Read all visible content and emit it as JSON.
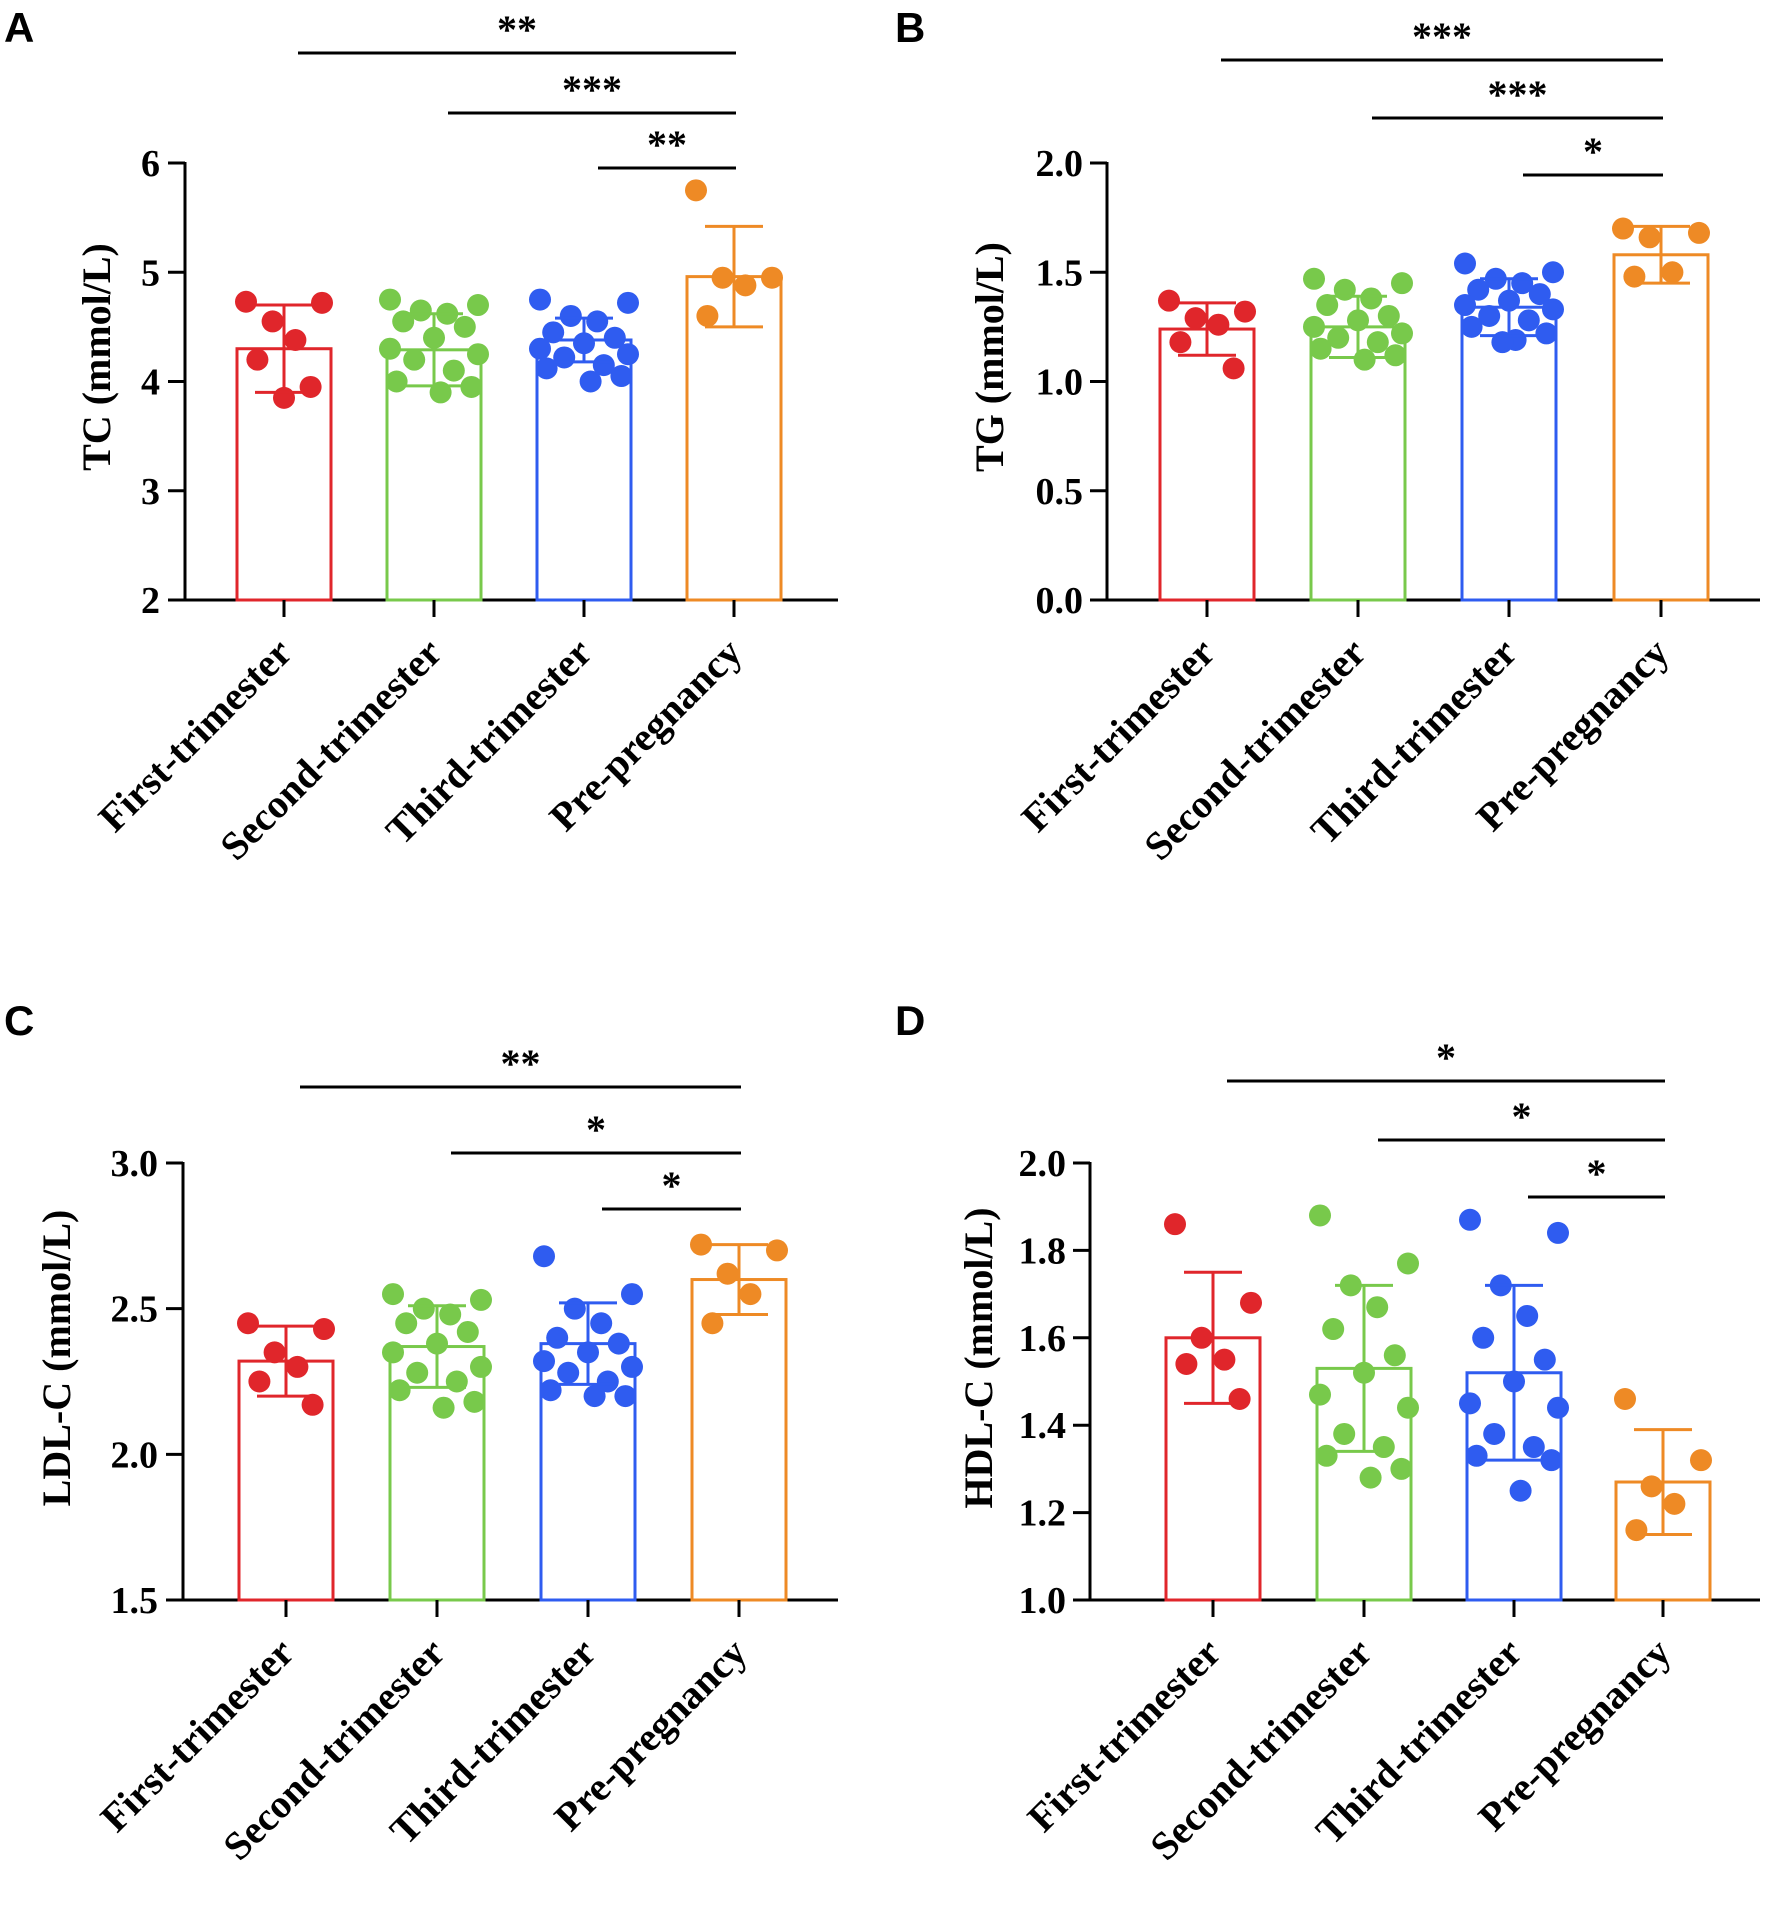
{
  "colors": {
    "First-trimester": "#E0262B",
    "Second-trimester": "#78C94B",
    "Third-trimester": "#2F5CF0",
    "Pre-pregnancy": "#EE8A25"
  },
  "chart_data": [
    {
      "panel": "A",
      "type": "bar",
      "categories": [
        "First-trimester",
        "Second-trimester",
        "Third-trimester",
        "Pre-pregnancy"
      ],
      "ylabel": "TC (mmol/L)",
      "ylim": [
        2,
        6
      ],
      "yticks": [
        "2",
        "3",
        "4",
        "5",
        "6"
      ],
      "series": [
        {
          "mean": 4.3,
          "sd": 0.4,
          "points": [
            4.73,
            4.72,
            4.55,
            4.38,
            4.2,
            3.95,
            3.85
          ]
        },
        {
          "mean": 4.29,
          "sd": 0.33,
          "points": [
            4.75,
            4.7,
            4.65,
            4.62,
            4.55,
            4.5,
            4.4,
            4.3,
            4.25,
            4.2,
            4.1,
            4.0,
            3.95,
            3.9
          ]
        },
        {
          "mean": 4.38,
          "sd": 0.2,
          "points": [
            4.75,
            4.72,
            4.6,
            4.55,
            4.45,
            4.4,
            4.35,
            4.3,
            4.25,
            4.22,
            4.15,
            4.12,
            4.05,
            4.0
          ]
        },
        {
          "mean": 4.96,
          "sd": 0.46,
          "points": [
            5.75,
            4.95,
            4.95,
            4.88,
            4.6
          ]
        }
      ],
      "significance": [
        {
          "from": 1,
          "to": 4,
          "label": "**"
        },
        {
          "from": 2,
          "to": 4,
          "label": "***"
        },
        {
          "from": 3,
          "to": 4,
          "label": "**"
        }
      ]
    },
    {
      "panel": "B",
      "type": "bar",
      "categories": [
        "First-trimester",
        "Second-trimester",
        "Third-trimester",
        "Pre-pregnancy"
      ],
      "ylabel": "TG (mmol/L)",
      "ylim": [
        0,
        2
      ],
      "yticks": [
        "0.0",
        "0.5",
        "1.0",
        "1.5",
        "2.0"
      ],
      "series": [
        {
          "mean": 1.24,
          "sd": 0.12,
          "points": [
            1.37,
            1.32,
            1.29,
            1.26,
            1.18,
            1.06
          ]
        },
        {
          "mean": 1.25,
          "sd": 0.14,
          "points": [
            1.47,
            1.45,
            1.42,
            1.38,
            1.35,
            1.3,
            1.28,
            1.25,
            1.22,
            1.2,
            1.18,
            1.15,
            1.12,
            1.1
          ]
        },
        {
          "mean": 1.34,
          "sd": 0.13,
          "points": [
            1.54,
            1.5,
            1.47,
            1.45,
            1.42,
            1.4,
            1.37,
            1.35,
            1.33,
            1.3,
            1.28,
            1.25,
            1.22,
            1.19,
            1.18
          ]
        },
        {
          "mean": 1.58,
          "sd": 0.13,
          "points": [
            1.7,
            1.68,
            1.66,
            1.5,
            1.48
          ]
        }
      ],
      "significance": [
        {
          "from": 1,
          "to": 4,
          "label": "***"
        },
        {
          "from": 2,
          "to": 4,
          "label": "***"
        },
        {
          "from": 3,
          "to": 4,
          "label": "*"
        }
      ]
    },
    {
      "panel": "C",
      "type": "bar",
      "categories": [
        "First-trimester",
        "Second-trimester",
        "Third-trimester",
        "Pre-pregnancy"
      ],
      "ylabel": "LDL-C (mmol/L)",
      "ylim": [
        1.5,
        3.0
      ],
      "yticks": [
        "1.5",
        "2.0",
        "2.5",
        "3.0"
      ],
      "series": [
        {
          "mean": 2.32,
          "sd": 0.12,
          "points": [
            2.45,
            2.43,
            2.35,
            2.3,
            2.25,
            2.17
          ]
        },
        {
          "mean": 2.37,
          "sd": 0.14,
          "points": [
            2.55,
            2.53,
            2.5,
            2.48,
            2.45,
            2.42,
            2.38,
            2.35,
            2.3,
            2.28,
            2.25,
            2.22,
            2.18,
            2.16
          ]
        },
        {
          "mean": 2.38,
          "sd": 0.14,
          "points": [
            2.68,
            2.55,
            2.5,
            2.45,
            2.4,
            2.38,
            2.35,
            2.32,
            2.3,
            2.28,
            2.25,
            2.22,
            2.2,
            2.2
          ]
        },
        {
          "mean": 2.6,
          "sd": 0.12,
          "points": [
            2.72,
            2.7,
            2.62,
            2.55,
            2.45
          ]
        }
      ],
      "significance": [
        {
          "from": 1,
          "to": 4,
          "label": "**"
        },
        {
          "from": 2,
          "to": 4,
          "label": "*"
        },
        {
          "from": 3,
          "to": 4,
          "label": "*"
        }
      ]
    },
    {
      "panel": "D",
      "type": "bar",
      "categories": [
        "First-trimester",
        "Second-trimester",
        "Third-trimester",
        "Pre-pregnancy"
      ],
      "ylabel": "HDL-C (mmol/L)",
      "ylim": [
        1.0,
        2.0
      ],
      "yticks": [
        "1.0",
        "1.2",
        "1.4",
        "1.6",
        "1.8",
        "2.0"
      ],
      "series": [
        {
          "mean": 1.6,
          "sd": 0.15,
          "points": [
            1.86,
            1.68,
            1.6,
            1.55,
            1.54,
            1.46
          ]
        },
        {
          "mean": 1.53,
          "sd": 0.19,
          "points": [
            1.88,
            1.77,
            1.72,
            1.67,
            1.62,
            1.56,
            1.52,
            1.47,
            1.44,
            1.38,
            1.35,
            1.33,
            1.3,
            1.28
          ]
        },
        {
          "mean": 1.52,
          "sd": 0.2,
          "points": [
            1.87,
            1.84,
            1.72,
            1.65,
            1.6,
            1.55,
            1.5,
            1.45,
            1.44,
            1.38,
            1.35,
            1.33,
            1.32,
            1.25
          ]
        },
        {
          "mean": 1.27,
          "sd": 0.12,
          "points": [
            1.46,
            1.32,
            1.26,
            1.22,
            1.16
          ]
        }
      ],
      "significance": [
        {
          "from": 1,
          "to": 4,
          "label": "*"
        },
        {
          "from": 2,
          "to": 4,
          "label": "*"
        },
        {
          "from": 3,
          "to": 4,
          "label": "*"
        }
      ]
    }
  ]
}
